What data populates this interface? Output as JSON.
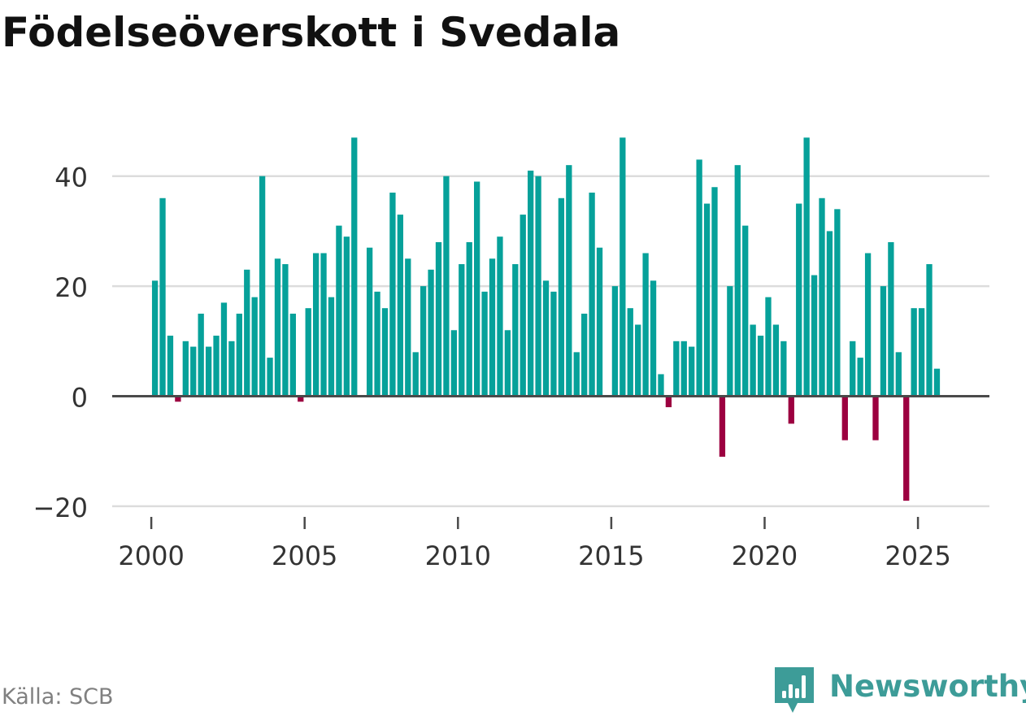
{
  "title": "Födelseöverskott i Svedala",
  "source": "Källa: SCB",
  "brand": "Newsworthy",
  "colors": {
    "positive": "#06a19a",
    "negative": "#9c0040",
    "grid": "#dcdcdc",
    "zero_line": "#4a4a4a",
    "text": "#333333",
    "brand": "#3d9c98"
  },
  "chart_data": {
    "type": "bar",
    "title": "Födelseöverskott i Svedala",
    "xlabel": "",
    "ylabel": "",
    "frequency": "quarterly",
    "x_start": 2000,
    "ylim": [
      -20,
      50
    ],
    "yticks": [
      -20,
      0,
      20,
      40
    ],
    "ytick_labels": [
      "−20",
      "0",
      "20",
      "40"
    ],
    "xticks": [
      2000,
      2005,
      2010,
      2015,
      2020,
      2025
    ],
    "xtick_labels": [
      "2000",
      "2005",
      "2010",
      "2015",
      "2020",
      "2025"
    ],
    "values": [
      21,
      36,
      11,
      -1,
      10,
      9,
      15,
      9,
      11,
      17,
      10,
      15,
      23,
      18,
      40,
      7,
      25,
      24,
      15,
      -1,
      16,
      26,
      26,
      18,
      31,
      29,
      47,
      0,
      27,
      19,
      16,
      37,
      33,
      25,
      8,
      20,
      23,
      28,
      40,
      12,
      24,
      28,
      39,
      19,
      25,
      29,
      12,
      24,
      33,
      41,
      40,
      21,
      19,
      36,
      42,
      8,
      15,
      37,
      27,
      0,
      20,
      47,
      16,
      13,
      26,
      21,
      4,
      -2,
      10,
      10,
      9,
      43,
      35,
      38,
      -11,
      20,
      42,
      31,
      13,
      11,
      18,
      13,
      10,
      -5,
      35,
      47,
      22,
      36,
      30,
      34,
      -8,
      10,
      7,
      26,
      -8,
      20,
      28,
      8,
      -19,
      16,
      16,
      24,
      5
    ]
  }
}
